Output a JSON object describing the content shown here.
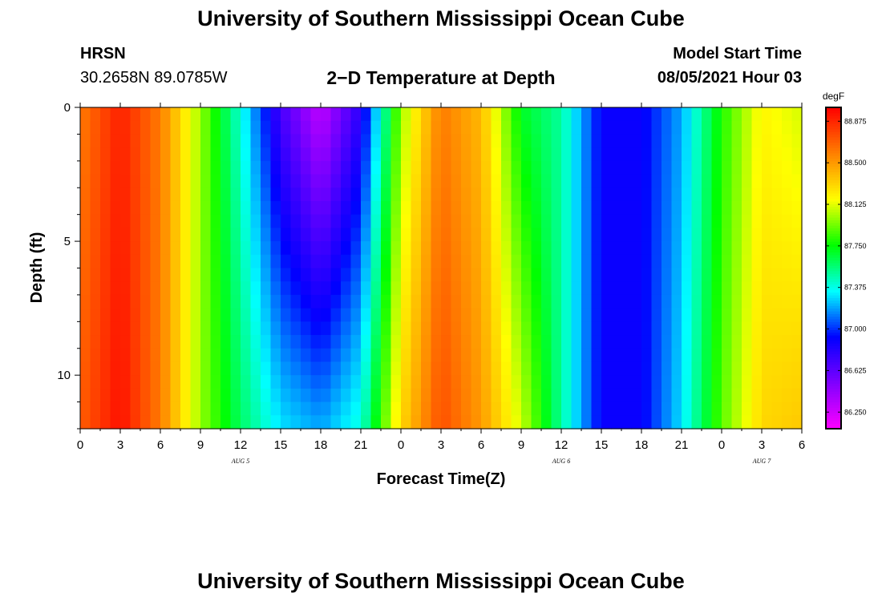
{
  "page": {
    "title_top": "University of Southern Mississippi Ocean Cube",
    "station": "HRSN",
    "coords": "30.2658N  89.0785W",
    "plot_title": "2−D Temperature at Depth",
    "model_start_label": "Model Start Time",
    "model_start_value": "08/05/2021 Hour 03",
    "title_bottom": "University of Southern Mississippi Ocean Cube"
  },
  "chart_data": {
    "type": "heatmap",
    "xlabel": "Forecast Time(Z)",
    "ylabel": "Depth (ft)",
    "x_hours_range": [
      0,
      54
    ],
    "x_tick_labels": [
      "0",
      "3",
      "6",
      "9",
      "12",
      "15",
      "18",
      "21",
      "0",
      "3",
      "6",
      "9",
      "12",
      "15",
      "18",
      "21",
      "0",
      "3",
      "6"
    ],
    "date_labels": [
      {
        "text": "AUG 5",
        "hour": 12
      },
      {
        "text": "AUG 6",
        "hour": 36
      },
      {
        "text": "AUG 7",
        "hour": 51
      }
    ],
    "y_range_ft": [
      0,
      12
    ],
    "y_tick_labels": [
      "0",
      "5",
      "10"
    ],
    "y_tick_values": [
      0,
      5,
      10
    ],
    "colorbar": {
      "unit": "degF",
      "range": [
        86.1,
        89.0
      ],
      "labels": [
        "88.875",
        "88.500",
        "88.125",
        "87.750",
        "87.375",
        "87.000",
        "86.625",
        "86.250"
      ],
      "values": [
        88.875,
        88.5,
        88.125,
        87.75,
        87.375,
        87.0,
        86.625,
        86.25
      ],
      "colors": [
        "#ff00ff",
        "#8000ff",
        "#0000ff",
        "#00ffff",
        "#00ff00",
        "#ffff00",
        "#ff8000",
        "#ff0000"
      ]
    },
    "depths_ft": [
      0,
      1,
      2,
      3,
      4,
      5,
      6,
      7,
      8,
      9,
      10,
      11,
      12
    ],
    "hours": [
      0,
      3,
      6,
      9,
      12,
      15,
      18,
      21,
      24,
      27,
      30,
      33,
      36,
      39,
      42,
      45,
      48,
      51,
      54
    ],
    "temperature_surface_degF": [
      88.6,
      88.9,
      88.6,
      88.0,
      87.4,
      86.7,
      86.3,
      86.8,
      88.0,
      88.6,
      88.4,
      87.7,
      87.5,
      86.9,
      86.9,
      87.2,
      87.8,
      88.2,
      88.1
    ],
    "temperature_bottom_degF": [
      88.7,
      88.95,
      88.6,
      88.0,
      87.6,
      87.3,
      87.2,
      87.4,
      88.3,
      88.75,
      88.5,
      88.1,
      87.5,
      86.9,
      86.9,
      87.3,
      87.9,
      88.3,
      88.35
    ]
  }
}
